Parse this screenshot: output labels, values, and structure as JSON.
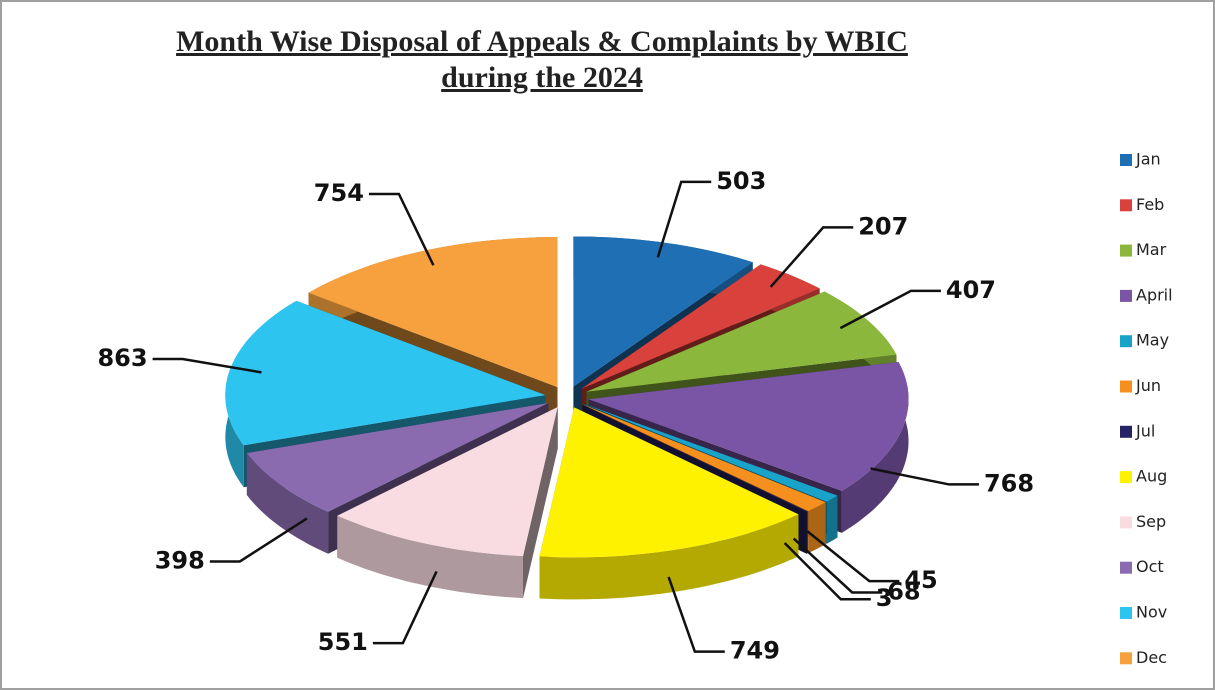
{
  "chart_data": {
    "type": "pie",
    "title": "Month Wise Disposal of Appeals & Complaints by WBIC during the 2024",
    "categories": [
      "Jan",
      "Feb",
      "Mar",
      "April",
      "May",
      "Jun",
      "Jul",
      "Aug",
      "Sep",
      "Oct",
      "Nov",
      "Dec"
    ],
    "values": [
      503,
      207,
      407,
      768,
      45,
      68,
      3,
      749,
      551,
      398,
      863,
      754
    ],
    "colors": [
      "#1f6fb5",
      "#d9413c",
      "#8bb83c",
      "#7a55a5",
      "#1aa3c8",
      "#f5901e",
      "#262466",
      "#fff200",
      "#f9dbe2",
      "#8a6bb0",
      "#2ec4f0",
      "#f6a13d"
    ],
    "legend": "right"
  }
}
